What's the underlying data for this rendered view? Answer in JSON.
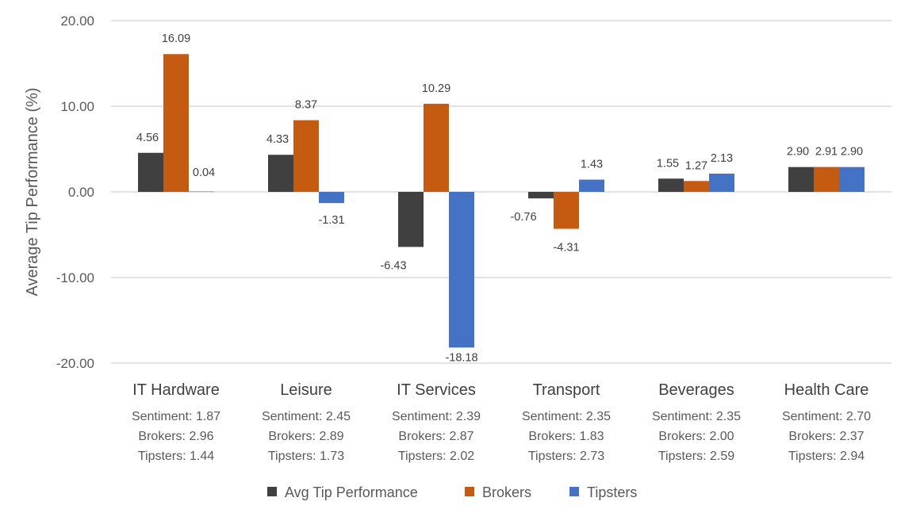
{
  "chart_data": {
    "type": "bar",
    "title": "",
    "xlabel": "",
    "ylabel": "Average Tip Performance (%)",
    "ylim": [
      -20,
      20
    ],
    "yticks": [
      20,
      10,
      0,
      -10,
      -20
    ],
    "ytick_labels": [
      "20.00",
      "10.00",
      "0.00",
      "-10.00",
      "-20.00"
    ],
    "grid": true,
    "legend_position": "bottom",
    "categories": [
      "IT Hardware",
      "Leisure",
      "IT Services",
      "Transport",
      "Beverages",
      "Health Care"
    ],
    "category_sublabels": [
      [
        "Sentiment: 1.87",
        "Brokers: 2.96",
        "Tipsters: 1.44"
      ],
      [
        "Sentiment: 2.45",
        "Brokers: 2.89",
        "Tipsters: 1.73"
      ],
      [
        "Sentiment: 2.39",
        "Brokers: 2.87",
        "Tipsters: 2.02"
      ],
      [
        "Sentiment: 2.35",
        "Brokers: 1.83",
        "Tipsters: 2.73"
      ],
      [
        "Sentiment: 2.35",
        "Brokers: 2.00",
        "Tipsters: 2.59"
      ],
      [
        "Sentiment: 2.70",
        "Brokers: 2.37",
        "Tipsters: 2.94"
      ]
    ],
    "series": [
      {
        "name": "Avg Tip Performance",
        "color": "#404040",
        "values": [
          4.56,
          4.33,
          -6.43,
          -0.76,
          1.55,
          2.9
        ],
        "labels": [
          "4.56",
          "4.33",
          "-6.43",
          "-0.76",
          "1.55",
          "2.90"
        ]
      },
      {
        "name": "Brokers",
        "color": "#c55a11",
        "values": [
          16.09,
          8.37,
          10.29,
          -4.31,
          1.27,
          2.91
        ],
        "labels": [
          "16.09",
          "8.37",
          "10.29",
          "-4.31",
          "1.27",
          "2.91"
        ]
      },
      {
        "name": "Tipsters",
        "color": "#4472c4",
        "values": [
          0.04,
          -1.31,
          -18.18,
          1.43,
          2.13,
          2.9
        ],
        "labels": [
          "0.04",
          "-1.31",
          "-18.18",
          "1.43",
          "2.13",
          "2.90"
        ]
      }
    ]
  }
}
